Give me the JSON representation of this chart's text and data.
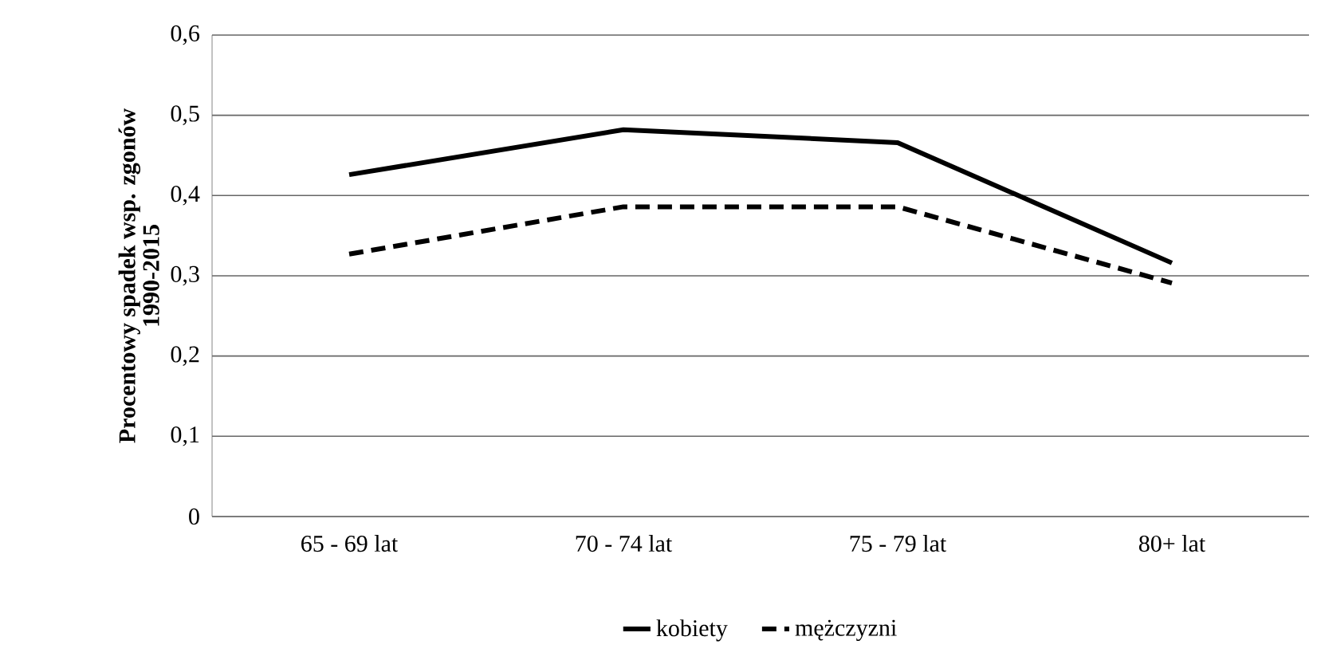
{
  "chart_data": {
    "type": "line",
    "ylabel": "Procentowy spadek wsp. zgonów\n1990-2015",
    "categories": [
      "65 - 69 lat",
      "70 - 74 lat",
      "75 - 79 lat",
      "80+ lat"
    ],
    "series": [
      {
        "name": "kobiety",
        "color": "#000000",
        "line_style": "solid",
        "values": [
          0.426,
          0.482,
          0.466,
          0.316
        ]
      },
      {
        "name": "mężczyzni",
        "color": "#000000",
        "line_style": "dashed",
        "values": [
          0.327,
          0.386,
          0.386,
          0.291
        ]
      }
    ],
    "ylim": [
      0,
      0.6
    ],
    "yticks": [
      {
        "value": 0,
        "label": "0"
      },
      {
        "value": 0.1,
        "label": "0,1"
      },
      {
        "value": 0.2,
        "label": "0,2"
      },
      {
        "value": 0.3,
        "label": "0,3"
      },
      {
        "value": 0.4,
        "label": "0,4"
      },
      {
        "value": 0.5,
        "label": "0,5"
      },
      {
        "value": 0.6,
        "label": "0,6"
      }
    ],
    "grid": "y",
    "legend": "bottom",
    "marker": "none"
  }
}
